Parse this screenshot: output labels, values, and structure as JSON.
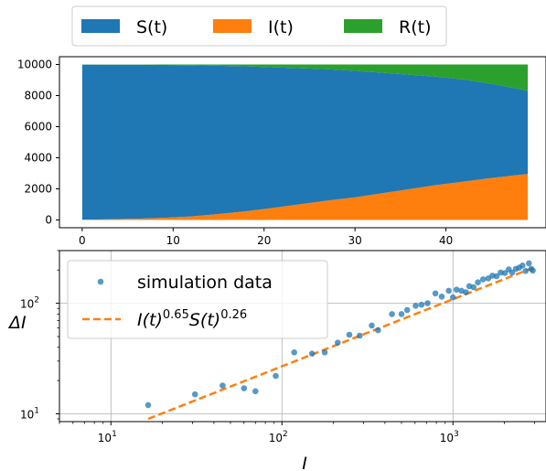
{
  "chart_data": [
    {
      "type": "area",
      "stacked": true,
      "x": [
        0,
        3,
        6,
        9,
        12,
        15,
        18,
        21,
        24,
        27,
        30,
        33,
        36,
        39,
        42,
        45,
        48,
        49
      ],
      "series": [
        {
          "name": "I(t)",
          "color": "#ff7f0e",
          "values": [
            20,
            45,
            80,
            140,
            230,
            380,
            560,
            780,
            1020,
            1250,
            1450,
            1720,
            1980,
            2250,
            2470,
            2700,
            2900,
            2950
          ]
        },
        {
          "name": "S(t)",
          "color": "#1f77b4",
          "values": [
            9975,
            9945,
            9905,
            9830,
            9720,
            9540,
            9320,
            9040,
            8740,
            8440,
            8140,
            7750,
            7360,
            6960,
            6560,
            6060,
            5530,
            5350
          ]
        },
        {
          "name": "R(t)",
          "color": "#2ca02c",
          "values": [
            5,
            10,
            15,
            30,
            50,
            80,
            120,
            180,
            240,
            310,
            410,
            530,
            660,
            790,
            970,
            1240,
            1570,
            1700
          ]
        }
      ],
      "xticks": [
        "0",
        "10",
        "20",
        "30",
        "40"
      ],
      "yticks": [
        "0",
        "2000",
        "4000",
        "6000",
        "8000",
        "10000"
      ],
      "xlim": [
        -2.5,
        51
      ],
      "ylim": [
        -500,
        10500
      ],
      "legend": {
        "position": "top-outside",
        "entries": [
          "S(t)",
          "I(t)",
          "R(t)"
        ]
      },
      "grid": false
    },
    {
      "type": "scatter",
      "xscale": "log",
      "yscale": "log",
      "xlabel": "I",
      "ylabel": "ΔI",
      "xlim": [
        5,
        3500
      ],
      "ylim": [
        8.5,
        300
      ],
      "grid": true,
      "legend": {
        "position": "upper-left"
      },
      "series": [
        {
          "name": "simulation data",
          "color": "#1f77b4",
          "marker": "circle",
          "x": [
            16.5,
            31,
            45,
            60,
            70,
            92,
            118,
            150,
            178,
            212,
            248,
            285,
            335,
            365,
            440,
            500,
            540,
            605,
            655,
            710,
            790,
            860,
            945,
            1000,
            1050,
            1120,
            1190,
            1245,
            1320,
            1400,
            1500,
            1610,
            1700,
            1800,
            1900,
            2010,
            2120,
            2220,
            2330,
            2440,
            2550,
            2660,
            2780,
            2870,
            2930
          ],
          "y": [
            12,
            15,
            18,
            17,
            16,
            22,
            36,
            35,
            36,
            44,
            52,
            51,
            63,
            57,
            80,
            80,
            87,
            95,
            97,
            100,
            123,
            115,
            130,
            113,
            133,
            130,
            126,
            143,
            140,
            155,
            165,
            168,
            178,
            176,
            190,
            188,
            203,
            190,
            205,
            210,
            220,
            196,
            230,
            205,
            198
          ]
        },
        {
          "name": "I(t)0.65S(t)0.26",
          "color": "#ff7f0e",
          "style": "dashed",
          "label_parts": {
            "a": "I(t)",
            "a_exp": "0.65",
            "b": "S(t)",
            "b_exp": "0.26"
          },
          "x": [
            16.5,
            2950
          ],
          "y": [
            9,
            210
          ]
        }
      ],
      "xticks": [
        {
          "value": 10,
          "base": "10",
          "exp": "1"
        },
        {
          "value": 100,
          "base": "10",
          "exp": "2"
        },
        {
          "value": 1000,
          "base": "10",
          "exp": "3"
        }
      ],
      "yticks": [
        {
          "value": 10,
          "base": "10",
          "exp": "1"
        },
        {
          "value": 100,
          "base": "10",
          "exp": "2"
        }
      ]
    }
  ]
}
